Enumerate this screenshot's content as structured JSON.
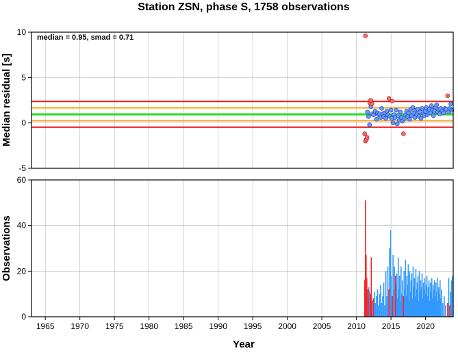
{
  "title": "Station ZSN, phase S, 1758 observations",
  "colors": {
    "outer_band": "#ee1c1c",
    "inner_band": "#f5a623",
    "median_line": "#22dd22",
    "inlier_point": "#6699ff",
    "outlier_point": "#ff6666",
    "inlier_bar": "#3399ff",
    "outlier_bar": "#ff2020",
    "grid": "#b4b4b4"
  },
  "chart_data": [
    {
      "type": "scatter",
      "title": "Station ZSN, phase S, 1758 observations",
      "xlabel": "",
      "ylabel": "Median residual [s]",
      "xlim": [
        1963,
        2024
      ],
      "ylim": [
        -5,
        10
      ],
      "y_ticks": [
        "10",
        "5",
        "0",
        "-5"
      ],
      "annotation": "median = 0.95, smad = 0.71",
      "median": 0.95,
      "reference_lines": [
        {
          "kind": "outer",
          "values": [
            2.37,
            -0.47
          ]
        },
        {
          "kind": "inner",
          "values": [
            1.66,
            0.24
          ]
        },
        {
          "kind": "median",
          "values": [
            0.95
          ]
        }
      ],
      "grid": true,
      "outliers": [
        [
          2011.3,
          9.6
        ],
        [
          2011.3,
          -2.0
        ],
        [
          2011.45,
          -1.8
        ],
        [
          2011.55,
          -1.6
        ],
        [
          2011.2,
          -1.2
        ],
        [
          2011.95,
          2.2
        ],
        [
          2012.15,
          2.4
        ],
        [
          2012.25,
          2.1
        ],
        [
          2012.05,
          2.5
        ],
        [
          2014.7,
          2.7
        ],
        [
          2015.2,
          2.4
        ],
        [
          2016.8,
          -1.2
        ],
        [
          2023.2,
          3.0
        ]
      ],
      "inliers": [
        [
          2011.6,
          1.2
        ],
        [
          2011.75,
          0.7
        ],
        [
          2011.9,
          -0.2
        ],
        [
          2012.1,
          1.8
        ],
        [
          2012.3,
          1.0
        ],
        [
          2012.5,
          0.9
        ],
        [
          2012.7,
          1.3
        ],
        [
          2012.9,
          0.4
        ],
        [
          2013.05,
          1.1
        ],
        [
          2013.2,
          0.9
        ],
        [
          2013.35,
          1.0
        ],
        [
          2013.5,
          0.6
        ],
        [
          2013.65,
          1.6
        ],
        [
          2013.8,
          1.0
        ],
        [
          2013.95,
          0.7
        ],
        [
          2014.1,
          1.1
        ],
        [
          2014.25,
          0.5
        ],
        [
          2014.4,
          1.3
        ],
        [
          2014.55,
          0.9
        ],
        [
          2014.85,
          0.7
        ],
        [
          2015.0,
          1.4
        ],
        [
          2015.1,
          0.5
        ],
        [
          2015.3,
          0.0
        ],
        [
          2015.45,
          0.9
        ],
        [
          2015.6,
          0.6
        ],
        [
          2015.75,
          1.4
        ],
        [
          2015.9,
          -0.1
        ],
        [
          2016.05,
          0.8
        ],
        [
          2016.2,
          0.3
        ],
        [
          2016.35,
          1.2
        ],
        [
          2016.5,
          0.6
        ],
        [
          2016.65,
          0.2
        ],
        [
          2016.95,
          0.5
        ],
        [
          2017.1,
          0.9
        ],
        [
          2017.25,
          1.3
        ],
        [
          2017.4,
          0.7
        ],
        [
          2017.55,
          1.1
        ],
        [
          2017.7,
          0.4
        ],
        [
          2017.85,
          1.5
        ],
        [
          2018.0,
          0.8
        ],
        [
          2018.15,
          1.7
        ],
        [
          2018.3,
          1.1
        ],
        [
          2018.45,
          0.6
        ],
        [
          2018.6,
          1.4
        ],
        [
          2018.75,
          0.9
        ],
        [
          2018.9,
          1.5
        ],
        [
          2019.05,
          0.7
        ],
        [
          2019.2,
          1.2
        ],
        [
          2019.35,
          0.5
        ],
        [
          2019.5,
          1.6
        ],
        [
          2019.65,
          1.0
        ],
        [
          2019.8,
          0.8
        ],
        [
          2019.95,
          1.3
        ],
        [
          2020.1,
          1.7
        ],
        [
          2020.25,
          0.9
        ],
        [
          2020.4,
          1.2
        ],
        [
          2020.55,
          1.5
        ],
        [
          2020.7,
          1.1
        ],
        [
          2020.85,
          1.9
        ],
        [
          2021.0,
          1.4
        ],
        [
          2021.15,
          0.8
        ],
        [
          2021.3,
          1.3
        ],
        [
          2021.45,
          1.7
        ],
        [
          2021.6,
          2.0
        ],
        [
          2021.75,
          1.2
        ],
        [
          2021.9,
          1.5
        ],
        [
          2022.05,
          1.0
        ],
        [
          2022.2,
          1.6
        ],
        [
          2022.4,
          1.3
        ],
        [
          2022.6,
          1.1
        ],
        [
          2022.8,
          1.6
        ],
        [
          2023.0,
          1.5
        ],
        [
          2023.35,
          1.2
        ],
        [
          2023.5,
          1.6
        ],
        [
          2023.65,
          2.1
        ],
        [
          2023.8,
          1.4
        ]
      ]
    },
    {
      "type": "bar",
      "xlabel": "Year",
      "ylabel": "Observations",
      "xlim": [
        1963,
        2024
      ],
      "ylim": [
        0,
        60
      ],
      "y_ticks": [
        "60",
        "40",
        "20",
        "0"
      ],
      "x_ticks": [
        "1965",
        "1970",
        "1975",
        "1980",
        "1985",
        "1990",
        "1995",
        "2000",
        "2005",
        "2010",
        "2015",
        "2020"
      ],
      "grid": true,
      "outlier_bars": [
        [
          2011.2,
          16
        ],
        [
          2011.3,
          51
        ],
        [
          2011.4,
          27
        ],
        [
          2011.5,
          17
        ],
        [
          2011.7,
          12
        ],
        [
          2012.0,
          10
        ],
        [
          2012.15,
          26
        ],
        [
          2012.45,
          8
        ],
        [
          2014.7,
          12
        ],
        [
          2015.2,
          9
        ],
        [
          2015.65,
          18
        ],
        [
          2016.8,
          9
        ],
        [
          2023.2,
          6
        ],
        [
          2023.5,
          5
        ]
      ],
      "inlier_bars": [
        [
          2011.6,
          12
        ],
        [
          2011.8,
          13
        ],
        [
          2011.9,
          11
        ],
        [
          2012.05,
          8
        ],
        [
          2012.3,
          7
        ],
        [
          2012.6,
          11
        ],
        [
          2012.75,
          6
        ],
        [
          2012.9,
          9
        ],
        [
          2013.05,
          12
        ],
        [
          2013.2,
          5
        ],
        [
          2013.35,
          10
        ],
        [
          2013.5,
          14
        ],
        [
          2013.65,
          6
        ],
        [
          2013.8,
          9
        ],
        [
          2013.95,
          15
        ],
        [
          2014.1,
          5
        ],
        [
          2014.25,
          20
        ],
        [
          2014.4,
          9
        ],
        [
          2014.55,
          22
        ],
        [
          2014.8,
          30
        ],
        [
          2014.95,
          38
        ],
        [
          2015.05,
          18
        ],
        [
          2015.3,
          27
        ],
        [
          2015.4,
          12
        ],
        [
          2015.5,
          22
        ],
        [
          2015.75,
          14
        ],
        [
          2015.85,
          19
        ],
        [
          2015.95,
          8
        ],
        [
          2016.05,
          26
        ],
        [
          2016.15,
          12
        ],
        [
          2016.25,
          18
        ],
        [
          2016.35,
          7
        ],
        [
          2016.45,
          22
        ],
        [
          2016.55,
          10
        ],
        [
          2016.65,
          16
        ],
        [
          2016.9,
          20
        ],
        [
          2017.0,
          12
        ],
        [
          2017.1,
          25
        ],
        [
          2017.2,
          9
        ],
        [
          2017.3,
          18
        ],
        [
          2017.4,
          14
        ],
        [
          2017.5,
          23
        ],
        [
          2017.6,
          7
        ],
        [
          2017.7,
          20
        ],
        [
          2017.8,
          11
        ],
        [
          2017.9,
          16
        ],
        [
          2018.0,
          19
        ],
        [
          2018.1,
          8
        ],
        [
          2018.2,
          22
        ],
        [
          2018.3,
          13
        ],
        [
          2018.4,
          17
        ],
        [
          2018.5,
          9
        ],
        [
          2018.6,
          21
        ],
        [
          2018.7,
          12
        ],
        [
          2018.8,
          15
        ],
        [
          2018.9,
          18
        ],
        [
          2019.0,
          7
        ],
        [
          2019.1,
          20
        ],
        [
          2019.2,
          11
        ],
        [
          2019.3,
          16
        ],
        [
          2019.4,
          13
        ],
        [
          2019.5,
          19
        ],
        [
          2019.6,
          8
        ],
        [
          2019.7,
          15
        ],
        [
          2019.8,
          12
        ],
        [
          2019.9,
          17
        ],
        [
          2020.0,
          10
        ],
        [
          2020.1,
          14
        ],
        [
          2020.2,
          18
        ],
        [
          2020.3,
          9
        ],
        [
          2020.4,
          13
        ],
        [
          2020.5,
          16
        ],
        [
          2020.6,
          7
        ],
        [
          2020.7,
          15
        ],
        [
          2020.8,
          11
        ],
        [
          2020.9,
          17
        ],
        [
          2021.0,
          8
        ],
        [
          2021.1,
          14
        ],
        [
          2021.2,
          12
        ],
        [
          2021.3,
          16
        ],
        [
          2021.4,
          9
        ],
        [
          2021.5,
          15
        ],
        [
          2021.6,
          11
        ],
        [
          2021.7,
          17
        ],
        [
          2021.8,
          7
        ],
        [
          2021.9,
          13
        ],
        [
          2022.0,
          10
        ],
        [
          2022.1,
          16
        ],
        [
          2022.2,
          8
        ],
        [
          2022.3,
          12
        ],
        [
          2022.5,
          6
        ],
        [
          2022.7,
          9
        ],
        [
          2022.9,
          5
        ],
        [
          2023.35,
          17
        ],
        [
          2023.6,
          11
        ],
        [
          2023.75,
          16
        ],
        [
          2023.9,
          18
        ]
      ]
    }
  ]
}
